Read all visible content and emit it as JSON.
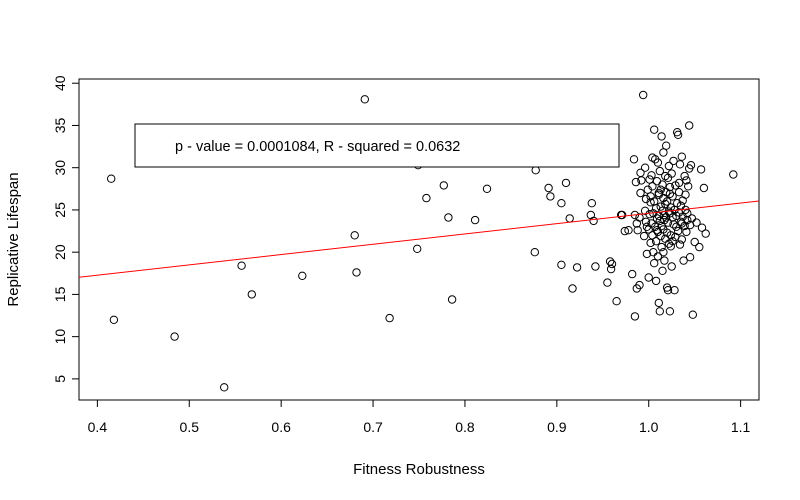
{
  "chart_data": {
    "type": "scatter",
    "title": "",
    "xlabel": "Fitness Robustness",
    "ylabel": "Replicative Lifespan",
    "xlim": [
      0.38,
      1.12
    ],
    "ylim": [
      2.5,
      40.5
    ],
    "xticks": [
      0.4,
      0.5,
      0.6,
      0.7,
      0.8,
      0.9,
      1.0,
      1.1
    ],
    "xtick_labels": [
      "0.4",
      "0.5",
      "0.6",
      "0.7",
      "0.8",
      "0.9",
      "1.0",
      "1.1"
    ],
    "yticks": [
      5,
      10,
      15,
      20,
      25,
      30,
      35,
      40
    ],
    "ytick_labels": [
      "5",
      "10",
      "15",
      "20",
      "25",
      "30",
      "35",
      "40"
    ],
    "grid": false,
    "annotation": "p - value = 0.0001084, R - squared = 0.0632",
    "regression_line": {
      "color": "#ff0000",
      "intercept": 12.4,
      "slope": 12.2
    },
    "marker": {
      "shape": "open-circle",
      "color": "#000000"
    },
    "points": [
      [
        0.415,
        28.7
      ],
      [
        0.418,
        12.0
      ],
      [
        0.484,
        10.0
      ],
      [
        0.538,
        4.0
      ],
      [
        0.557,
        18.4
      ],
      [
        0.568,
        15.0
      ],
      [
        0.623,
        17.2
      ],
      [
        0.68,
        22.0
      ],
      [
        0.682,
        17.6
      ],
      [
        0.691,
        38.1
      ],
      [
        0.718,
        12.2
      ],
      [
        0.748,
        20.4
      ],
      [
        0.749,
        30.3
      ],
      [
        0.758,
        26.4
      ],
      [
        0.777,
        27.9
      ],
      [
        0.782,
        24.1
      ],
      [
        0.786,
        14.4
      ],
      [
        0.811,
        23.8
      ],
      [
        0.824,
        27.5
      ],
      [
        0.876,
        20.0
      ],
      [
        0.877,
        29.7
      ],
      [
        0.891,
        27.6
      ],
      [
        0.893,
        26.6
      ],
      [
        0.905,
        25.8
      ],
      [
        0.905,
        18.5
      ],
      [
        0.91,
        28.2
      ],
      [
        0.914,
        24.0
      ],
      [
        0.917,
        15.7
      ],
      [
        0.922,
        18.2
      ],
      [
        0.937,
        24.4
      ],
      [
        0.938,
        25.8
      ],
      [
        0.94,
        23.7
      ],
      [
        0.942,
        18.3
      ],
      [
        0.955,
        16.4
      ],
      [
        0.958,
        18.9
      ],
      [
        0.959,
        18.0
      ],
      [
        0.96,
        18.6
      ],
      [
        0.965,
        14.2
      ],
      [
        0.97,
        24.4
      ],
      [
        0.971,
        24.4
      ],
      [
        0.974,
        22.5
      ],
      [
        0.978,
        22.6
      ],
      [
        0.982,
        17.4
      ],
      [
        0.984,
        31.0
      ],
      [
        0.985,
        12.4
      ],
      [
        0.985,
        24.4
      ],
      [
        0.986,
        28.3
      ],
      [
        0.987,
        15.7
      ],
      [
        0.987,
        23.4
      ],
      [
        0.988,
        22.6
      ],
      [
        0.99,
        24.1
      ],
      [
        0.99,
        16.1
      ],
      [
        0.991,
        29.4
      ],
      [
        0.991,
        27.0
      ],
      [
        0.992,
        28.5
      ],
      [
        0.994,
        38.6
      ],
      [
        0.995,
        21.9
      ],
      [
        0.996,
        30.0
      ],
      [
        0.996,
        24.9
      ],
      [
        0.997,
        26.3
      ],
      [
        0.998,
        23.0
      ],
      [
        0.998,
        19.8
      ],
      [
        0.999,
        27.4
      ],
      [
        1.0,
        22.7
      ],
      [
        1.0,
        17.0
      ],
      [
        1.001,
        24.5
      ],
      [
        1.002,
        25.9
      ],
      [
        1.002,
        21.1
      ],
      [
        1.003,
        29.1
      ],
      [
        1.003,
        23.4
      ],
      [
        1.004,
        22.0
      ],
      [
        1.004,
        27.8
      ],
      [
        1.005,
        24.6
      ],
      [
        1.005,
        20.0
      ],
      [
        1.006,
        34.5
      ],
      [
        1.006,
        26.0
      ],
      [
        1.006,
        18.7
      ],
      [
        1.007,
        31.0
      ],
      [
        1.007,
        23.0
      ],
      [
        1.008,
        25.2
      ],
      [
        1.008,
        16.6
      ],
      [
        1.008,
        21.3
      ],
      [
        1.009,
        28.4
      ],
      [
        1.009,
        24.0
      ],
      [
        1.01,
        30.6
      ],
      [
        1.01,
        22.4
      ],
      [
        1.01,
        19.5
      ],
      [
        1.011,
        26.8
      ],
      [
        1.011,
        24.3
      ],
      [
        1.011,
        14.0
      ],
      [
        1.012,
        13.0
      ],
      [
        1.012,
        23.7
      ],
      [
        1.012,
        29.6
      ],
      [
        1.013,
        21.9
      ],
      [
        1.013,
        27.4
      ],
      [
        1.013,
        25.4
      ],
      [
        1.014,
        33.7
      ],
      [
        1.014,
        23.1
      ],
      [
        1.014,
        20.6
      ],
      [
        1.015,
        17.8
      ],
      [
        1.015,
        24.9
      ],
      [
        1.015,
        28.0
      ],
      [
        1.016,
        31.8
      ],
      [
        1.016,
        22.7
      ],
      [
        1.016,
        26.4
      ],
      [
        1.017,
        19.0
      ],
      [
        1.017,
        24.4
      ],
      [
        1.017,
        23.8
      ],
      [
        1.018,
        29.0
      ],
      [
        1.018,
        21.6
      ],
      [
        1.018,
        25.7
      ],
      [
        1.019,
        32.6
      ],
      [
        1.019,
        24.1
      ],
      [
        1.019,
        27.1
      ],
      [
        1.02,
        15.8
      ],
      [
        1.02,
        22.3
      ],
      [
        1.02,
        26.0
      ],
      [
        1.021,
        28.8
      ],
      [
        1.021,
        15.5
      ],
      [
        1.021,
        23.5
      ],
      [
        1.022,
        24.8
      ],
      [
        1.022,
        30.2
      ],
      [
        1.022,
        21.0
      ],
      [
        1.023,
        27.7
      ],
      [
        1.023,
        13.0
      ],
      [
        1.023,
        24.6
      ],
      [
        1.024,
        25.3
      ],
      [
        1.024,
        22.0
      ],
      [
        1.024,
        20.7
      ],
      [
        1.025,
        29.3
      ],
      [
        1.025,
        18.3
      ],
      [
        1.026,
        24.1
      ],
      [
        1.026,
        26.6
      ],
      [
        1.027,
        23.3
      ],
      [
        1.027,
        30.8
      ],
      [
        1.028,
        25.0
      ],
      [
        1.028,
        15.5
      ],
      [
        1.029,
        21.8
      ],
      [
        1.029,
        27.9
      ],
      [
        1.03,
        24.3
      ],
      [
        1.03,
        23.0
      ],
      [
        1.031,
        34.2
      ],
      [
        1.031,
        25.8
      ],
      [
        1.032,
        33.9
      ],
      [
        1.032,
        22.5
      ],
      [
        1.033,
        28.2
      ],
      [
        1.033,
        24.7
      ],
      [
        1.034,
        20.9
      ],
      [
        1.034,
        30.4
      ],
      [
        1.035,
        25.5
      ],
      [
        1.035,
        23.6
      ],
      [
        1.036,
        31.3
      ],
      [
        1.036,
        21.5
      ],
      [
        1.037,
        26.1
      ],
      [
        1.037,
        24.2
      ],
      [
        1.038,
        19.0
      ],
      [
        1.039,
        29.0
      ],
      [
        1.039,
        23.1
      ],
      [
        1.04,
        25.0
      ],
      [
        1.04,
        26.8
      ],
      [
        1.041,
        22.4
      ],
      [
        1.042,
        24.6
      ],
      [
        1.042,
        23.8
      ],
      [
        1.043,
        27.8
      ],
      [
        1.044,
        29.9
      ],
      [
        1.044,
        35.0
      ],
      [
        1.045,
        19.4
      ],
      [
        1.045,
        23.2
      ],
      [
        1.046,
        30.3
      ],
      [
        1.047,
        24.0
      ],
      [
        1.048,
        12.6
      ],
      [
        1.05,
        21.2
      ],
      [
        1.052,
        23.5
      ],
      [
        1.055,
        20.6
      ],
      [
        1.057,
        29.8
      ],
      [
        1.058,
        22.9
      ],
      [
        1.06,
        27.6
      ],
      [
        1.062,
        22.2
      ],
      [
        1.092,
        29.2
      ],
      [
        1.002,
        26.6
      ],
      [
        1.009,
        22.6
      ],
      [
        1.016,
        20.0
      ],
      [
        1.023,
        26.9
      ],
      [
        1.026,
        21.3
      ],
      [
        1.033,
        27.1
      ],
      [
        1.036,
        23.4
      ],
      [
        1.041,
        28.5
      ],
      [
        0.997,
        23.6
      ],
      [
        1.001,
        28.6
      ],
      [
        1.004,
        31.2
      ],
      [
        1.011,
        27.0
      ]
    ]
  }
}
